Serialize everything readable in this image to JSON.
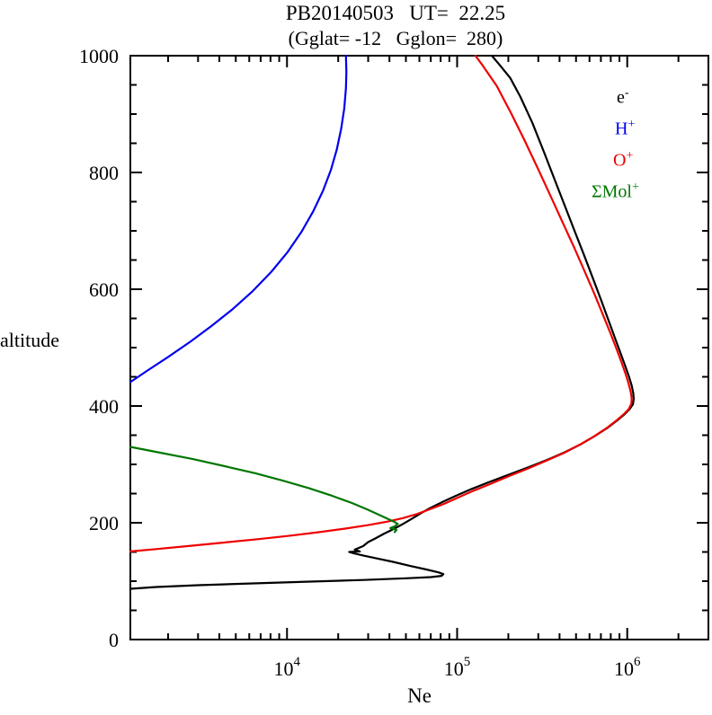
{
  "title": "PB20140503   UT=  22.25",
  "subtitle": "(Gglat= -12   Gglon=  280)",
  "chart_data": {
    "type": "line",
    "title": "PB20140503   UT=  22.25",
    "subtitle": "(Gglat= -12   Gglon=  280)",
    "xlabel": "Ne",
    "ylabel": "altitude",
    "x_scale": "log",
    "xlim": [
      1200,
      3000000
    ],
    "ylim": [
      0,
      1000
    ],
    "y_major_ticks": [
      0,
      200,
      400,
      600,
      800,
      1000
    ],
    "y_minor_step": 50,
    "x_major_decades": [
      4,
      5,
      6
    ],
    "grid": false,
    "legend_position": "top-right",
    "series": [
      {
        "name": "e-",
        "label_base": "e",
        "label_sup": "-",
        "color": "#000000",
        "points": [
          [
            1200,
            87
          ],
          [
            1700,
            90
          ],
          [
            3000,
            93
          ],
          [
            6000,
            96
          ],
          [
            13000,
            99
          ],
          [
            28000,
            102
          ],
          [
            50000,
            105
          ],
          [
            70000,
            107
          ],
          [
            81000,
            109
          ],
          [
            83000,
            112
          ],
          [
            78000,
            115
          ],
          [
            66000,
            120
          ],
          [
            53000,
            126
          ],
          [
            42000,
            133
          ],
          [
            33500,
            139
          ],
          [
            28000,
            144
          ],
          [
            24500,
            148
          ],
          [
            23200,
            150
          ],
          [
            26800,
            151
          ],
          [
            25000,
            154
          ],
          [
            28000,
            160
          ],
          [
            30000,
            167
          ],
          [
            33000,
            173
          ],
          [
            37000,
            181
          ],
          [
            41500,
            188
          ],
          [
            46000,
            195
          ],
          [
            50000,
            201
          ],
          [
            55000,
            208
          ],
          [
            61000,
            216
          ],
          [
            69000,
            225
          ],
          [
            81000,
            235
          ],
          [
            98000,
            246
          ],
          [
            122000,
            258
          ],
          [
            155000,
            270
          ],
          [
            200000,
            282
          ],
          [
            262000,
            295
          ],
          [
            340000,
            308
          ],
          [
            430000,
            321
          ],
          [
            530000,
            334
          ],
          [
            640000,
            348
          ],
          [
            760000,
            362
          ],
          [
            870000,
            375
          ],
          [
            965000,
            386
          ],
          [
            1035000,
            395
          ],
          [
            1080000,
            403
          ],
          [
            1093000,
            412
          ],
          [
            1085000,
            422
          ],
          [
            1062000,
            435
          ],
          [
            1025000,
            450
          ],
          [
            975000,
            468
          ],
          [
            915000,
            490
          ],
          [
            850000,
            515
          ],
          [
            780000,
            545
          ],
          [
            705000,
            580
          ],
          [
            630000,
            618
          ],
          [
            558000,
            658
          ],
          [
            490000,
            700
          ],
          [
            428000,
            744
          ],
          [
            372000,
            790
          ],
          [
            322000,
            837
          ],
          [
            277000,
            885
          ],
          [
            235000,
            930
          ],
          [
            205000,
            962
          ],
          [
            178000,
            984
          ],
          [
            160000,
            1000
          ]
        ]
      },
      {
        "name": "H+",
        "label_base": "H",
        "label_sup": "+",
        "color": "#0000ee",
        "points": [
          [
            1200,
            441
          ],
          [
            1500,
            460
          ],
          [
            2000,
            484
          ],
          [
            2700,
            510
          ],
          [
            3600,
            537
          ],
          [
            4800,
            566
          ],
          [
            6300,
            597
          ],
          [
            8100,
            630
          ],
          [
            10100,
            664
          ],
          [
            12200,
            699
          ],
          [
            14300,
            734
          ],
          [
            16300,
            769
          ],
          [
            18100,
            804
          ],
          [
            19600,
            839
          ],
          [
            20800,
            874
          ],
          [
            21700,
            909
          ],
          [
            22200,
            944
          ],
          [
            22350,
            972
          ],
          [
            22200,
            1000
          ]
        ]
      },
      {
        "name": "O+",
        "label_base": "O",
        "label_sup": "+",
        "color": "#ee0000",
        "points": [
          [
            1200,
            151
          ],
          [
            1700,
            155
          ],
          [
            2600,
            160
          ],
          [
            4200,
            166
          ],
          [
            6800,
            172
          ],
          [
            10500,
            178
          ],
          [
            15500,
            184
          ],
          [
            22000,
            190
          ],
          [
            30000,
            196
          ],
          [
            39000,
            202
          ],
          [
            48000,
            208
          ],
          [
            58000,
            215
          ],
          [
            69000,
            223
          ],
          [
            83000,
            232
          ],
          [
            101000,
            243
          ],
          [
            125000,
            255
          ],
          [
            158000,
            267
          ],
          [
            202000,
            280
          ],
          [
            262000,
            293
          ],
          [
            338000,
            307
          ],
          [
            428000,
            320
          ],
          [
            528000,
            334
          ],
          [
            638000,
            348
          ],
          [
            755000,
            362
          ],
          [
            862000,
            375
          ],
          [
            955000,
            386
          ],
          [
            1022000,
            395
          ],
          [
            1058000,
            404
          ],
          [
            1062000,
            413
          ],
          [
            1048000,
            424
          ],
          [
            1020000,
            438
          ],
          [
            978000,
            455
          ],
          [
            925000,
            475
          ],
          [
            862000,
            499
          ],
          [
            793000,
            526
          ],
          [
            718000,
            557
          ],
          [
            641000,
            592
          ],
          [
            563000,
            630
          ],
          [
            488000,
            671
          ],
          [
            418000,
            714
          ],
          [
            355000,
            759
          ],
          [
            299000,
            806
          ],
          [
            250000,
            854
          ],
          [
            208000,
            901
          ],
          [
            171000,
            948
          ],
          [
            140000,
            985
          ],
          [
            128000,
            1000
          ]
        ]
      },
      {
        "name": "Mol+",
        "label_base": "ΣMol",
        "label_sup": "+",
        "color": "#007700",
        "points": [
          [
            1200,
            330
          ],
          [
            1800,
            320
          ],
          [
            2800,
            309
          ],
          [
            4300,
            297
          ],
          [
            6500,
            285
          ],
          [
            9500,
            272
          ],
          [
            13500,
            259
          ],
          [
            18500,
            246
          ],
          [
            24000,
            234
          ],
          [
            29500,
            223
          ],
          [
            34500,
            214
          ],
          [
            39000,
            207
          ],
          [
            42500,
            202
          ],
          [
            44800,
            198
          ],
          [
            43000,
            194
          ],
          [
            40500,
            191
          ],
          [
            44000,
            188
          ],
          [
            43000,
            184
          ]
        ]
      }
    ]
  }
}
